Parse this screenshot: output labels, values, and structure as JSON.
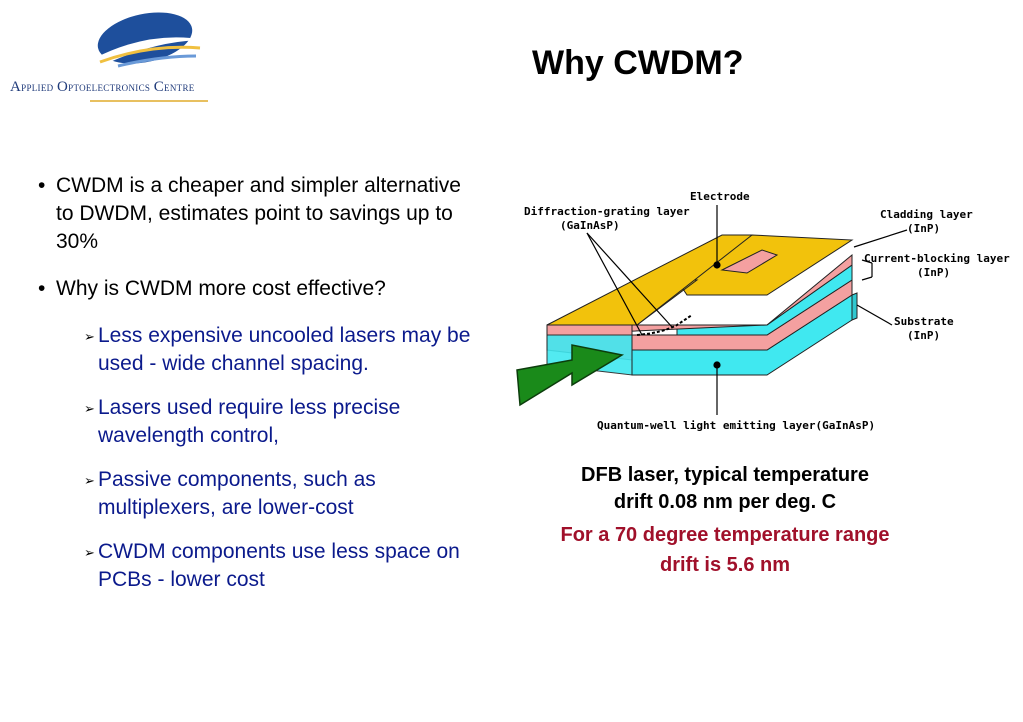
{
  "logo": {
    "text_lead": "A",
    "text_rest": "pplied ",
    "text_lead2": "O",
    "text_rest2": "ptoelectronics ",
    "text_lead3": "C",
    "text_rest3": "entre"
  },
  "title": "Why CWDM?",
  "bullets": [
    {
      "text": "CWDM is a cheaper and simpler alternative to DWDM, estimates point to savings up to 30%"
    },
    {
      "text": "Why is CWDM more cost effective?"
    }
  ],
  "sub_bullets": [
    "Less expensive uncooled lasers may be used - wide channel spacing.",
    "Lasers used require less precise wavelength control,",
    "Passive components, such as multiplexers, are lower-cost",
    "CWDM components use less space on PCBs - lower cost"
  ],
  "diagram": {
    "labels": {
      "electrode": "Electrode",
      "grating_1": "Diffraction-grating layer",
      "grating_2": "(GaInAsP)",
      "cladding_1": "Cladding layer",
      "cladding_2": "(InP)",
      "blocking_1": "Current-blocking layer",
      "blocking_2": "(InP)",
      "substrate_1": "Substrate",
      "substrate_2": "(InP)",
      "quantum": "Quantum-well light emitting layer(GaInAsP)"
    },
    "colors": {
      "electrode": "#f2c20c",
      "cladding": "#f4a0a0",
      "blocking": "#40e8f0",
      "arrow": "#1a8a1a"
    }
  },
  "caption": {
    "line1": "DFB laser, typical temperature drift 0.08 nm per deg. C",
    "line2": "For a 70 degree temperature range drift is 5.6 nm"
  }
}
